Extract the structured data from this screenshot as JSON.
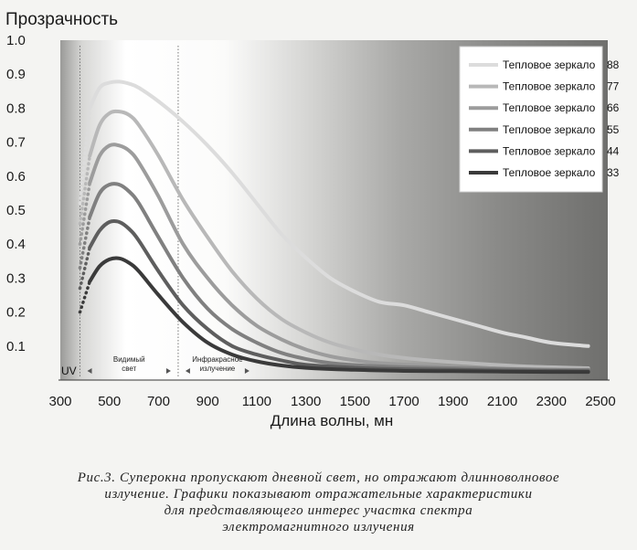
{
  "chart_data": {
    "type": "line",
    "ylabel": "Прозрачность",
    "xlabel": "Длина волны, мн",
    "xlim": [
      300,
      2500
    ],
    "ylim": [
      0,
      1.0
    ],
    "x_ticks": [
      300,
      500,
      700,
      900,
      1100,
      1300,
      1500,
      1700,
      1900,
      2100,
      2300,
      2500
    ],
    "y_ticks": [
      "0.1",
      "0.2",
      "0.3",
      "0.4",
      "0.5",
      "0.6",
      "0.7",
      "0.8",
      "0.9",
      "1.0"
    ],
    "grid": false,
    "legend_position": "top-right",
    "regions": [
      {
        "label": "UV",
        "lines": [
          "UV"
        ],
        "from": 300,
        "to": 380
      },
      {
        "label": "Видимый свет",
        "lines": [
          "Видимый",
          "свет"
        ],
        "from": 380,
        "to": 780
      },
      {
        "label": "Инфракрасное излучение",
        "lines": [
          "Инфракрасное",
          "излучение"
        ],
        "from": 780,
        "to": 1100
      }
    ],
    "series": [
      {
        "name": "Тепловое зеркало",
        "number": "88",
        "color": "#dcdcdc",
        "x": [
          380,
          420,
          460,
          500,
          540,
          580,
          620,
          700,
          800,
          900,
          1000,
          1100,
          1200,
          1300,
          1400,
          1500,
          1600,
          1700,
          1800,
          1900,
          2000,
          2100,
          2200,
          2300,
          2450
        ],
        "y": [
          0.52,
          0.8,
          0.86,
          0.875,
          0.878,
          0.872,
          0.86,
          0.82,
          0.76,
          0.69,
          0.61,
          0.52,
          0.43,
          0.36,
          0.3,
          0.26,
          0.23,
          0.22,
          0.2,
          0.18,
          0.16,
          0.14,
          0.125,
          0.11,
          0.1
        ]
      },
      {
        "name": "Тепловое зеркало",
        "number": "77",
        "color": "#b8b8b8",
        "x": [
          380,
          420,
          460,
          500,
          540,
          580,
          620,
          700,
          800,
          900,
          1000,
          1100,
          1200,
          1300,
          1400,
          1500,
          1600,
          1700,
          1800,
          2000,
          2200,
          2450
        ],
        "y": [
          0.46,
          0.66,
          0.75,
          0.785,
          0.79,
          0.78,
          0.75,
          0.66,
          0.53,
          0.42,
          0.32,
          0.24,
          0.18,
          0.14,
          0.11,
          0.09,
          0.075,
          0.065,
          0.058,
          0.048,
          0.04,
          0.035
        ]
      },
      {
        "name": "Тепловое зеркало",
        "number": "66",
        "color": "#9c9c9c",
        "x": [
          380,
          420,
          460,
          500,
          540,
          580,
          620,
          700,
          800,
          900,
          1000,
          1100,
          1200,
          1300,
          1400,
          1500,
          1600,
          1800,
          2000,
          2200,
          2450
        ],
        "y": [
          0.4,
          0.58,
          0.66,
          0.69,
          0.69,
          0.675,
          0.64,
          0.54,
          0.4,
          0.3,
          0.22,
          0.16,
          0.12,
          0.09,
          0.07,
          0.058,
          0.05,
          0.042,
          0.036,
          0.032,
          0.03
        ]
      },
      {
        "name": "Тепловое зеркало",
        "number": "55",
        "color": "#808080",
        "x": [
          380,
          420,
          460,
          500,
          540,
          580,
          620,
          700,
          800,
          900,
          1000,
          1100,
          1200,
          1300,
          1400,
          1500,
          1700,
          1900,
          2100,
          2300,
          2450
        ],
        "y": [
          0.33,
          0.48,
          0.55,
          0.575,
          0.575,
          0.555,
          0.52,
          0.42,
          0.3,
          0.21,
          0.15,
          0.11,
          0.08,
          0.062,
          0.05,
          0.044,
          0.038,
          0.035,
          0.033,
          0.03,
          0.03
        ]
      },
      {
        "name": "Тепловое зеркало",
        "number": "44",
        "color": "#5e5e5e",
        "x": [
          380,
          420,
          460,
          500,
          540,
          580,
          620,
          700,
          800,
          900,
          1000,
          1100,
          1200,
          1300,
          1500,
          1700,
          1900,
          2100,
          2300,
          2450
        ],
        "y": [
          0.27,
          0.39,
          0.44,
          0.465,
          0.465,
          0.445,
          0.41,
          0.32,
          0.22,
          0.15,
          0.1,
          0.075,
          0.058,
          0.045,
          0.036,
          0.032,
          0.03,
          0.028,
          0.027,
          0.026
        ]
      },
      {
        "name": "Тепловое зеркало",
        "number": "33",
        "color": "#3a3a3a",
        "x": [
          380,
          420,
          460,
          500,
          540,
          580,
          620,
          700,
          800,
          900,
          1000,
          1100,
          1200,
          1300,
          1500,
          1700,
          1900,
          2100,
          2300,
          2450
        ],
        "y": [
          0.2,
          0.29,
          0.335,
          0.355,
          0.358,
          0.345,
          0.32,
          0.25,
          0.17,
          0.11,
          0.075,
          0.055,
          0.043,
          0.036,
          0.03,
          0.027,
          0.026,
          0.025,
          0.024,
          0.024
        ]
      }
    ]
  },
  "caption": {
    "lines": [
      "Рис.3. Суперокна пропускают дневной свет, но отражают длинноволновое",
      "излучение. Графики показывают отражательные характеристики",
      "для представляющего интерес участка спектра",
      "электромагнитного    излучения"
    ]
  }
}
